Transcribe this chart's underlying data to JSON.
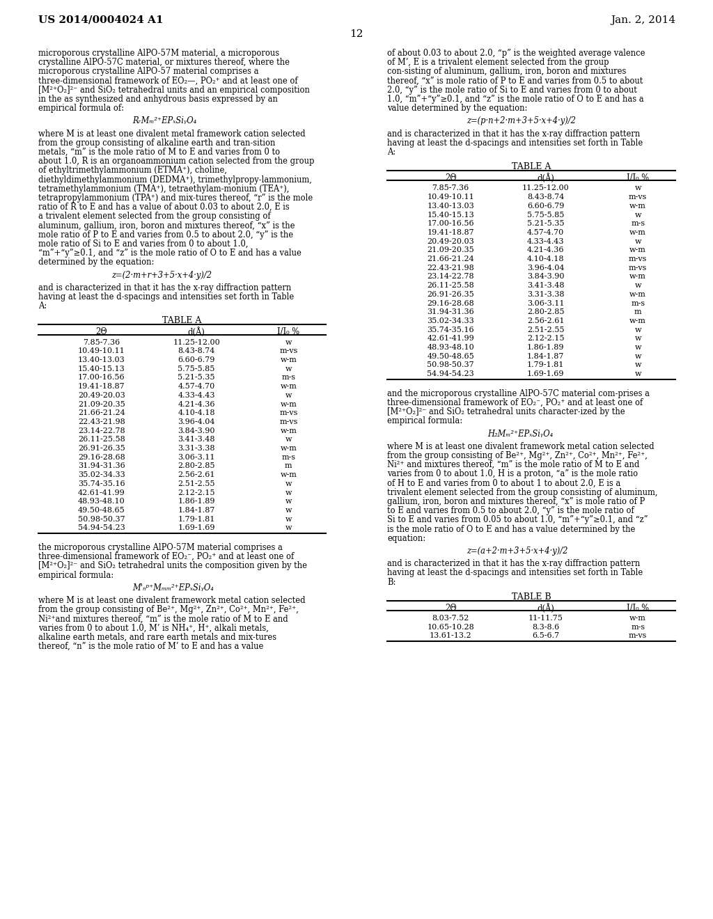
{
  "page_header_left": "US 2014/0004024 A1",
  "page_header_right": "Jan. 2, 2014",
  "page_number": "12",
  "table_a_rows": [
    [
      "7.85-7.36",
      "11.25-12.00",
      "w"
    ],
    [
      "10.49-10.11",
      "8.43-8.74",
      "m-vs"
    ],
    [
      "13.40-13.03",
      "6.60-6.79",
      "w-m"
    ],
    [
      "15.40-15.13",
      "5.75-5.85",
      "w"
    ],
    [
      "17.00-16.56",
      "5.21-5.35",
      "m-s"
    ],
    [
      "19.41-18.87",
      "4.57-4.70",
      "w-m"
    ],
    [
      "20.49-20.03",
      "4.33-4.43",
      "w"
    ],
    [
      "21.09-20.35",
      "4.21-4.36",
      "w-m"
    ],
    [
      "21.66-21.24",
      "4.10-4.18",
      "m-vs"
    ],
    [
      "22.43-21.98",
      "3.96-4.04",
      "m-vs"
    ],
    [
      "23.14-22.78",
      "3.84-3.90",
      "w-m"
    ],
    [
      "26.11-25.58",
      "3.41-3.48",
      "w"
    ],
    [
      "26.91-26.35",
      "3.31-3.38",
      "w-m"
    ],
    [
      "29.16-28.68",
      "3.06-3.11",
      "m-s"
    ],
    [
      "31.94-31.36",
      "2.80-2.85",
      "m"
    ],
    [
      "35.02-34.33",
      "2.56-2.61",
      "w-m"
    ],
    [
      "35.74-35.16",
      "2.51-2.55",
      "w"
    ],
    [
      "42.61-41.99",
      "2.12-2.15",
      "w"
    ],
    [
      "48.93-48.10",
      "1.86-1.89",
      "w"
    ],
    [
      "49.50-48.65",
      "1.84-1.87",
      "w"
    ],
    [
      "50.98-50.37",
      "1.79-1.81",
      "w"
    ],
    [
      "54.94-54.23",
      "1.69-1.69",
      "w"
    ]
  ],
  "table_b_rows": [
    [
      "8.03-7.52",
      "11-11.75",
      "w-m"
    ],
    [
      "10.65-10.28",
      "8.3-8.6",
      "m-s"
    ],
    [
      "13.61-13.2",
      "6.5-6.7",
      "m-vs"
    ]
  ],
  "table_headers": [
    "2Θ",
    "d(Å)",
    "I/I₀ %"
  ]
}
